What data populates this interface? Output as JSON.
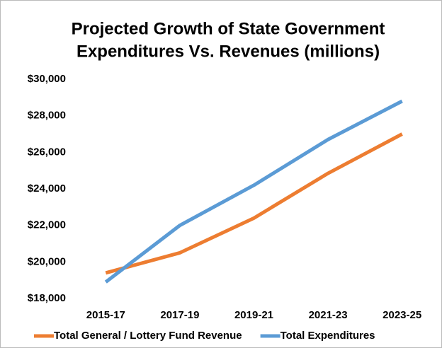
{
  "chart_data": {
    "type": "line",
    "title": [
      "Projected Growth of State Government",
      "Expenditures Vs. Revenues (millions)"
    ],
    "categories": [
      "2015-17",
      "2017-19",
      "2019-21",
      "2021-23",
      "2023-25"
    ],
    "series": [
      {
        "name": "Total General / Lottery Fund Revenue",
        "color": "#ed7d31",
        "values": [
          19400,
          20500,
          22400,
          24850,
          27000
        ]
      },
      {
        "name": "Total Expenditures",
        "color": "#5b9bd5",
        "values": [
          18900,
          22000,
          24200,
          26700,
          28800
        ]
      }
    ],
    "ylim": [
      18000,
      30000
    ],
    "yticks": [
      {
        "value": 18000,
        "label": "$18,000"
      },
      {
        "value": 20000,
        "label": "$20,000"
      },
      {
        "value": 22000,
        "label": "$22,000"
      },
      {
        "value": 24000,
        "label": "$24,000"
      },
      {
        "value": 26000,
        "label": "$26,000"
      },
      {
        "value": 28000,
        "label": "$28,000"
      },
      {
        "value": 30000,
        "label": "$30,000"
      }
    ],
    "grid": false,
    "legend": "bottom"
  }
}
